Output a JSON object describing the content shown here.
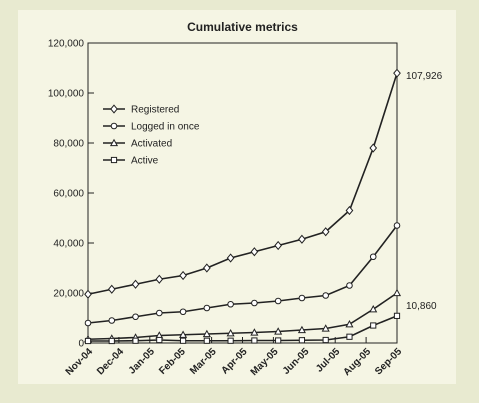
{
  "colors": {
    "background": "#e8ead0",
    "panel": "#f5f5e4",
    "line": "#222222"
  },
  "chart_data": {
    "type": "line",
    "title": "Cumulative metrics",
    "xlabel": "",
    "ylabel": "",
    "categories": [
      "Nov-04",
      "Dec-04",
      "Jan-05",
      "Feb-05",
      "Mar-05",
      "Apr-05",
      "May-05",
      "Jun-05",
      "Jul-05",
      "Aug-05",
      "Sep-05"
    ],
    "ylim": [
      0,
      120000
    ],
    "yticks": [
      0,
      20000,
      40000,
      60000,
      80000,
      100000,
      120000
    ],
    "ytick_labels": [
      "0",
      "20,000",
      "40,000",
      "60,000",
      "80,000",
      "100,000",
      "120,000"
    ],
    "legend_position": "upper-left",
    "grid": false,
    "series": [
      {
        "name": "Registered",
        "marker": "diamond",
        "points": [
          [
            0,
            19500
          ],
          [
            0.5,
            21500
          ],
          [
            1,
            23500
          ],
          [
            1.5,
            25500
          ],
          [
            2,
            27000
          ],
          [
            2.5,
            30000
          ],
          [
            3,
            34000
          ],
          [
            3.5,
            36500
          ],
          [
            4,
            39000
          ],
          [
            4.5,
            41500
          ],
          [
            5,
            44500
          ],
          [
            5.5,
            53000
          ],
          [
            6,
            78000
          ],
          [
            6.5,
            107926
          ]
        ]
      },
      {
        "name": "Logged in once",
        "marker": "circle",
        "points": [
          [
            0,
            8000
          ],
          [
            0.5,
            9000
          ],
          [
            1,
            10500
          ],
          [
            1.5,
            12000
          ],
          [
            2,
            12500
          ],
          [
            2.5,
            14000
          ],
          [
            3,
            15500
          ],
          [
            3.5,
            16000
          ],
          [
            4,
            16800
          ],
          [
            4.5,
            18000
          ],
          [
            5,
            19000
          ],
          [
            5.5,
            23000
          ],
          [
            6,
            34500
          ],
          [
            6.5,
            47000
          ]
        ]
      },
      {
        "name": "Activated",
        "marker": "triangle",
        "points": [
          [
            0,
            1500
          ],
          [
            0.5,
            1800
          ],
          [
            1,
            2200
          ],
          [
            1.5,
            3000
          ],
          [
            2,
            3300
          ],
          [
            2.5,
            3600
          ],
          [
            3,
            3900
          ],
          [
            3.5,
            4200
          ],
          [
            4,
            4600
          ],
          [
            4.5,
            5200
          ],
          [
            5,
            5800
          ],
          [
            5.5,
            7500
          ],
          [
            6,
            13500
          ],
          [
            6.5,
            20000
          ]
        ]
      },
      {
        "name": "Active",
        "marker": "square",
        "points": [
          [
            0,
            800
          ],
          [
            0.5,
            800
          ],
          [
            1,
            900
          ],
          [
            1.5,
            1200
          ],
          [
            2,
            900
          ],
          [
            2.5,
            900
          ],
          [
            3,
            900
          ],
          [
            3.5,
            1000
          ],
          [
            4,
            1000
          ],
          [
            4.5,
            1100
          ],
          [
            5,
            1200
          ],
          [
            5.5,
            2500
          ],
          [
            6,
            7000
          ],
          [
            6.5,
            10860
          ]
        ]
      }
    ],
    "annotations": [
      {
        "text": "107,926",
        "series": "Registered"
      },
      {
        "text": "10,860",
        "series": "Active"
      }
    ]
  }
}
